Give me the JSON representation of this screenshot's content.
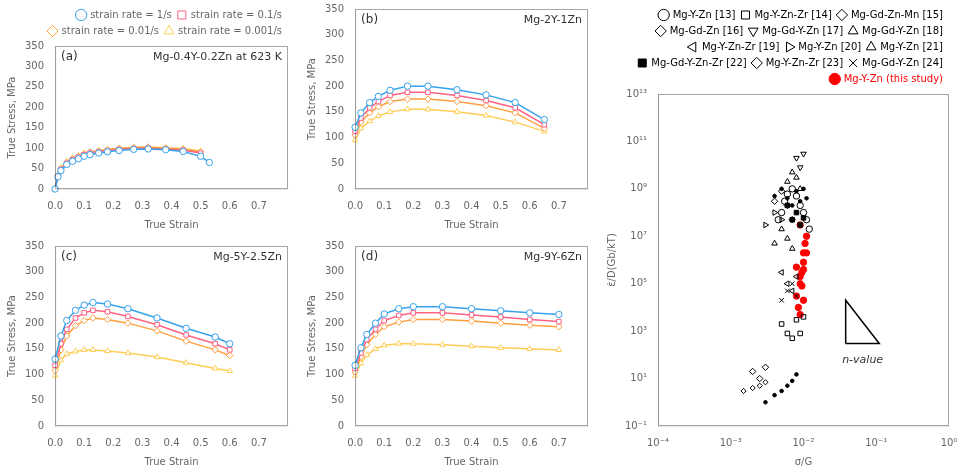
{
  "chart_data": [
    {
      "type": "line",
      "title": "Mg-0.4Y-0.2Zn at 623 K",
      "subtitle": "(a)",
      "xlabel": "True Strain",
      "ylabel": "True Stress, MPa",
      "xlim": [
        0,
        0.8
      ],
      "ylim": [
        0,
        350
      ],
      "xticks": [
        {
          "value": 0,
          "label": "0.0"
        },
        0.1,
        0.2,
        0.3,
        0.4,
        0.5,
        0.6,
        0.7
      ],
      "yticks": [
        0,
        50,
        100,
        150,
        200,
        250,
        300,
        350
      ],
      "grid": false,
      "legend": "upper right",
      "series": [
        {
          "name": "strain rate = 1/s",
          "marker": "open_circle",
          "x": [
            0.0,
            0.01,
            0.02,
            0.04,
            0.06,
            0.08,
            0.1,
            0.12,
            0.15,
            0.18,
            0.22,
            0.27,
            0.32,
            0.38,
            0.44,
            0.5,
            0.53
          ],
          "values": [
            0,
            30,
            45,
            60,
            68,
            74,
            80,
            84,
            88,
            91,
            94,
            97,
            98,
            96,
            92,
            80,
            65
          ]
        },
        {
          "name": "strain rate = 0.1/s",
          "marker": "open_square",
          "x": [
            0.0,
            0.01,
            0.02,
            0.04,
            0.06,
            0.08,
            0.1,
            0.12,
            0.15,
            0.18,
            0.22,
            0.27,
            0.32,
            0.38,
            0.44,
            0.5
          ],
          "values": [
            0,
            32,
            48,
            63,
            72,
            78,
            84,
            88,
            91,
            94,
            97,
            99,
            100,
            98,
            95,
            88
          ]
        },
        {
          "name": "strain rate = 0.01/s",
          "marker": "open_diamond",
          "x": [
            0.0,
            0.01,
            0.02,
            0.04,
            0.06,
            0.08,
            0.1,
            0.12,
            0.15,
            0.18,
            0.22,
            0.27,
            0.32,
            0.38,
            0.44,
            0.5
          ],
          "values": [
            0,
            33,
            50,
            65,
            74,
            80,
            86,
            90,
            93,
            96,
            99,
            101,
            102,
            100,
            97,
            91
          ]
        },
        {
          "name": "strain rate = 0.001/s",
          "marker": "open_triangle_up",
          "x": [
            0.0,
            0.01,
            0.02,
            0.04,
            0.06,
            0.08,
            0.1,
            0.12,
            0.15,
            0.18,
            0.22,
            0.27,
            0.32,
            0.38,
            0.44,
            0.5
          ],
          "values": [
            0,
            35,
            52,
            67,
            76,
            82,
            88,
            91,
            94,
            97,
            100,
            102,
            103,
            101,
            99,
            93
          ]
        }
      ]
    },
    {
      "type": "line",
      "title": "Mg-2Y-1Zn",
      "subtitle": "(b)",
      "xlabel": "True Strain",
      "ylabel": "True Stress, MPa",
      "xlim": [
        0,
        0.8
      ],
      "ylim": [
        0,
        350
      ],
      "xticks": [
        {
          "value": 0,
          "label": "0.0"
        },
        0.1,
        0.2,
        0.3,
        0.4,
        0.5,
        0.6,
        0.7
      ],
      "yticks": [
        0,
        50,
        100,
        150,
        200,
        250,
        300,
        350
      ],
      "grid": false,
      "series": [
        {
          "marker": "open_circle",
          "x": [
            0.0,
            0.02,
            0.05,
            0.08,
            0.12,
            0.18,
            0.25,
            0.35,
            0.45,
            0.55,
            0.65
          ],
          "values": [
            120,
            148,
            168,
            180,
            192,
            200,
            200,
            193,
            183,
            168,
            135
          ]
        },
        {
          "marker": "open_square",
          "x": [
            0.0,
            0.02,
            0.05,
            0.08,
            0.12,
            0.18,
            0.25,
            0.35,
            0.45,
            0.55,
            0.65
          ],
          "values": [
            112,
            138,
            158,
            170,
            182,
            188,
            188,
            182,
            172,
            158,
            125
          ]
        },
        {
          "marker": "open_diamond",
          "x": [
            0.0,
            0.02,
            0.05,
            0.08,
            0.12,
            0.18,
            0.25,
            0.35,
            0.45,
            0.55,
            0.65
          ],
          "values": [
            105,
            130,
            148,
            160,
            170,
            175,
            175,
            170,
            162,
            148,
            118
          ]
        },
        {
          "marker": "open_triangle_up",
          "x": [
            0.0,
            0.02,
            0.05,
            0.08,
            0.12,
            0.18,
            0.25,
            0.35,
            0.45,
            0.55,
            0.65
          ],
          "values": [
            95,
            118,
            132,
            142,
            150,
            155,
            155,
            150,
            143,
            130,
            112
          ]
        }
      ]
    },
    {
      "type": "line",
      "title": "Mg-5Y-2.5Zn",
      "subtitle": "(c)",
      "xlabel": "True Strain",
      "ylabel": "True Stress, MPa",
      "xlim": [
        0,
        0.8
      ],
      "ylim": [
        0,
        350
      ],
      "xticks": [
        {
          "value": 0,
          "label": "0.0"
        },
        0.1,
        0.2,
        0.3,
        0.4,
        0.5,
        0.6,
        0.7
      ],
      "yticks": [
        0,
        50,
        100,
        150,
        200,
        250,
        300,
        350
      ],
      "grid": false,
      "series": [
        {
          "marker": "open_circle",
          "x": [
            0.0,
            0.02,
            0.04,
            0.07,
            0.1,
            0.13,
            0.18,
            0.25,
            0.35,
            0.45,
            0.55,
            0.6
          ],
          "values": [
            130,
            175,
            205,
            225,
            235,
            240,
            237,
            228,
            210,
            190,
            173,
            160
          ]
        },
        {
          "marker": "open_square",
          "x": [
            0.0,
            0.02,
            0.04,
            0.07,
            0.1,
            0.13,
            0.18,
            0.25,
            0.35,
            0.45,
            0.55,
            0.6
          ],
          "values": [
            118,
            160,
            188,
            210,
            220,
            225,
            222,
            213,
            197,
            177,
            160,
            148
          ]
        },
        {
          "marker": "open_diamond",
          "x": [
            0.0,
            0.02,
            0.04,
            0.07,
            0.1,
            0.13,
            0.18,
            0.25,
            0.35,
            0.45,
            0.55,
            0.6
          ],
          "values": [
            108,
            148,
            175,
            195,
            205,
            210,
            207,
            200,
            185,
            165,
            148,
            137
          ]
        },
        {
          "marker": "open_triangle_up",
          "x": [
            0.0,
            0.02,
            0.04,
            0.07,
            0.1,
            0.13,
            0.18,
            0.25,
            0.35,
            0.45,
            0.55,
            0.6
          ],
          "values": [
            98,
            128,
            140,
            145,
            148,
            148,
            146,
            142,
            134,
            123,
            112,
            107
          ]
        }
      ]
    },
    {
      "type": "line",
      "title": "Mg-9Y-6Zn",
      "subtitle": "(d)",
      "xlabel": "True Strain",
      "ylabel": "True Stress, MPa",
      "xlim": [
        0,
        0.8
      ],
      "ylim": [
        0,
        350
      ],
      "xticks": [
        {
          "value": 0,
          "label": "0.0"
        },
        0.1,
        0.2,
        0.3,
        0.4,
        0.5,
        0.6,
        0.7
      ],
      "yticks": [
        0,
        50,
        100,
        150,
        200,
        250,
        300,
        350
      ],
      "grid": false,
      "series": [
        {
          "marker": "open_circle",
          "x": [
            0.0,
            0.02,
            0.04,
            0.07,
            0.1,
            0.15,
            0.2,
            0.3,
            0.4,
            0.5,
            0.6,
            0.7
          ],
          "values": [
            118,
            152,
            178,
            200,
            218,
            228,
            232,
            232,
            228,
            224,
            220,
            217
          ]
        },
        {
          "marker": "open_square",
          "x": [
            0.0,
            0.02,
            0.04,
            0.07,
            0.1,
            0.15,
            0.2,
            0.3,
            0.4,
            0.5,
            0.6,
            0.7
          ],
          "values": [
            112,
            142,
            168,
            188,
            205,
            215,
            220,
            220,
            216,
            212,
            207,
            203
          ]
        },
        {
          "marker": "open_diamond",
          "x": [
            0.0,
            0.02,
            0.04,
            0.07,
            0.1,
            0.15,
            0.2,
            0.3,
            0.4,
            0.5,
            0.6,
            0.7
          ],
          "values": [
            105,
            135,
            158,
            178,
            193,
            202,
            207,
            207,
            204,
            200,
            196,
            193
          ]
        },
        {
          "marker": "open_triangle_up",
          "x": [
            0.0,
            0.02,
            0.04,
            0.07,
            0.1,
            0.15,
            0.2,
            0.3,
            0.4,
            0.5,
            0.6,
            0.7
          ],
          "values": [
            98,
            122,
            138,
            150,
            157,
            160,
            160,
            158,
            155,
            152,
            150,
            148
          ]
        }
      ]
    },
    {
      "type": "scatter",
      "xlabel": "σ/G",
      "ylabel": "ε̇/D(Gb/kT)",
      "log": true,
      "xlim": [
        0.0001,
        1.0
      ],
      "ylim": [
        0.1,
        10000000000000.0
      ],
      "xticks": [
        {
          "value": 0.0001,
          "label": "10⁻⁴"
        },
        {
          "value": 0.001,
          "label": "10⁻³"
        },
        {
          "value": 0.01,
          "label": "10⁻²"
        },
        {
          "value": 0.1,
          "label": "10⁻¹"
        },
        {
          "value": 1.0,
          "label": "10⁰"
        }
      ],
      "yticks": [
        {
          "value": 0.1,
          "label": "10⁻¹"
        },
        {
          "value": 10.0,
          "label": "10¹"
        },
        {
          "value": 1000.0,
          "label": "10³"
        },
        {
          "value": 100000.0,
          "label": "10⁵"
        },
        {
          "value": 10000000.0,
          "label": "10⁷"
        },
        {
          "value": 1000000000.0,
          "label": "10⁹"
        },
        {
          "value": 100000000000.0,
          "label": "10¹¹"
        },
        {
          "value": 10000000000000.0,
          "label": "10¹³"
        }
      ],
      "grid": false,
      "legend": "upper right",
      "series": [
        {
          "name": "Mg-Y-Zn [13]",
          "marker": "open_circle",
          "color": "black",
          "x": [
            0.0045,
            0.005,
            0.0055,
            0.006,
            0.007,
            0.008,
            0.009,
            0.01,
            0.011,
            0.012
          ],
          "values": [
            50000000.0,
            100000000.0,
            300000000.0,
            600000000.0,
            1000000000.0,
            500000000.0,
            200000000.0,
            100000000.0,
            50000000.0,
            20000000.0
          ]
        },
        {
          "name": "Mg-Y-Zn-Zr [14]",
          "marker": "open_square",
          "color": "black",
          "x": [
            0.005,
            0.006,
            0.007,
            0.008,
            0.009,
            0.01
          ],
          "values": [
            2000.0,
            800.0,
            500.0,
            3000.0,
            800.0,
            4000.0
          ]
        },
        {
          "name": "Mg-Gd-Zn-Mn [15]",
          "marker": "open_diamond",
          "color": "black",
          "x": [
            0.004,
            0.005,
            0.006,
            0.007
          ],
          "values": [
            300000000.0,
            800000000.0,
            200000000.0,
            50000000.0
          ]
        },
        {
          "name": "Mg-Gd-Zn [16]",
          "marker": "open_thin_diamond",
          "color": "black",
          "x": [
            0.0015,
            0.002,
            0.0025,
            0.003
          ],
          "values": [
            3,
            4,
            5,
            7
          ]
        },
        {
          "name": "Mg-Gd-Y-Zn [17]",
          "marker": "open_triangle_down",
          "color": "black",
          "x": [
            0.008,
            0.009,
            0.01
          ],
          "values": [
            20000000000.0,
            8000000000.0,
            30000000000.0
          ]
        },
        {
          "name": "Mg-Gd-Y-Zn [18]",
          "marker": "open_triangle_up",
          "color": "black",
          "x": [
            0.006,
            0.007,
            0.008,
            0.009
          ],
          "values": [
            2000000000.0,
            5000000000.0,
            3000000000.0,
            1000000000.0
          ]
        },
        {
          "name": "Mg-Y-Zn-Zr [19]",
          "marker": "open_triangle_left",
          "color": "black",
          "x": [
            0.005,
            0.006,
            0.007,
            0.008
          ],
          "values": [
            300000.0,
            100000.0,
            50000.0,
            200000.0
          ]
        },
        {
          "name": "Mg-Y-Zn [20]",
          "marker": "open_triangle_right",
          "color": "black",
          "x": [
            0.003,
            0.004,
            0.005
          ],
          "values": [
            30000000.0,
            100000000.0,
            50000000.0
          ]
        },
        {
          "name": "Mg-Y-Zn [21]",
          "marker": "open_triangle_up",
          "color": "black",
          "x": [
            0.004,
            0.005,
            0.006,
            0.007
          ],
          "values": [
            5000000.0,
            20000000.0,
            8000000.0,
            3000000.0
          ]
        },
        {
          "name": "Mg-Gd-Y-Zn-Zr [22]",
          "marker": "filled_square",
          "color": "black",
          "x": [
            0.006,
            0.007,
            0.008,
            0.009,
            0.01
          ],
          "values": [
            200000000.0,
            50000000.0,
            100000000.0,
            30000000.0,
            60000000.0
          ]
        },
        {
          "name": "Mg-Y-Zn-Zr [23]",
          "marker": "open_diamond",
          "color": "black",
          "x": [
            0.002,
            0.0025,
            0.003
          ],
          "values": [
            20,
            10,
            30
          ]
        },
        {
          "name": "Mg-Gd-Y-Zn [24]",
          "marker": "x",
          "color": "black",
          "x": [
            0.005,
            0.006,
            0.007,
            0.008
          ],
          "values": [
            20000.0,
            50000.0,
            100000.0,
            30000.0
          ]
        },
        {
          "marker": "point",
          "color": "black",
          "x": [
            0.003,
            0.004,
            0.005,
            0.006,
            0.007,
            0.008,
            0.004,
            0.005,
            0.006,
            0.007,
            0.008,
            0.009,
            0.01,
            0.011
          ],
          "values": [
            1,
            2,
            3,
            5,
            8,
            15,
            500000000.0,
            1000000000.0,
            400000000.0,
            200000000.0,
            800000000.0,
            300000000.0,
            1000000000.0,
            400000000.0
          ]
        },
        {
          "name": "Mg-Y-Zn (this study)",
          "marker": "filled_circle",
          "color": "red",
          "x": [
            0.008,
            0.009,
            0.0095,
            0.01,
            0.01,
            0.0105,
            0.011,
            0.009,
            0.0085,
            0.009,
            0.01,
            0.0095,
            0.008,
            0.009,
            0.01,
            0.011
          ],
          "values": [
            30000.0,
            100000.0,
            300000.0,
            800000.0,
            2000000.0,
            5000000.0,
            10000000.0,
            30000000.0,
            10000.0,
            5000.0,
            20000.0,
            80000.0,
            500000.0,
            200000.0,
            400000.0,
            2000000.0
          ]
        },
        {
          "type": "line",
          "color": "black",
          "line_style": "solid",
          "x": [
            0.038,
            0.038,
            0.11,
            0.038
          ],
          "values": [
            300.0,
            20000.0,
            300.0,
            300.0
          ]
        }
      ],
      "annotations": [
        {
          "text": "n-value",
          "x": 0.065,
          "y": 120.0
        }
      ]
    }
  ]
}
